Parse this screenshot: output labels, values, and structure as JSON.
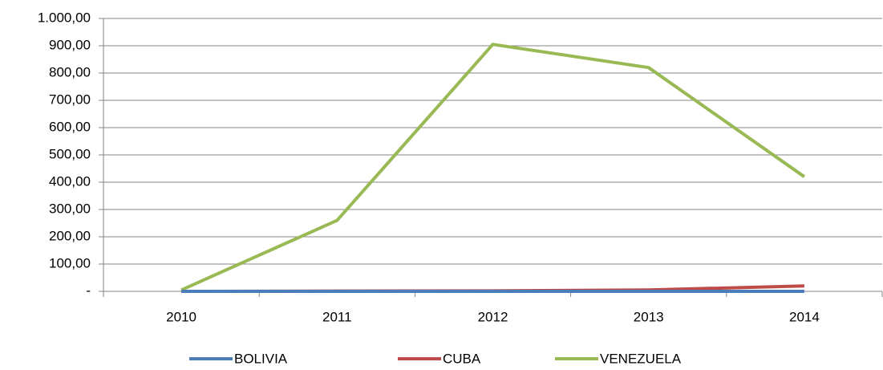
{
  "chart_data": {
    "type": "line",
    "categories": [
      "2010",
      "2011",
      "2012",
      "2013",
      "2014"
    ],
    "series": [
      {
        "name": "BOLIVIA",
        "color": "#4a7ebb",
        "values": [
          0,
          0,
          0,
          0,
          0
        ]
      },
      {
        "name": "CUBA",
        "color": "#be4b48",
        "values": [
          0,
          1,
          2,
          5,
          20
        ]
      },
      {
        "name": "VENEZUELA",
        "color": "#98b954",
        "values": [
          5,
          260,
          905,
          820,
          420
        ]
      }
    ],
    "ylim": [
      0,
      1000
    ],
    "yticks": [
      {
        "value": 0,
        "label": "-"
      },
      {
        "value": 100,
        "label": "100,00"
      },
      {
        "value": 200,
        "label": "200,00"
      },
      {
        "value": 300,
        "label": "300,00"
      },
      {
        "value": 400,
        "label": "400,00"
      },
      {
        "value": 500,
        "label": "500,00"
      },
      {
        "value": 600,
        "label": "600,00"
      },
      {
        "value": 700,
        "label": "700,00"
      },
      {
        "value": 800,
        "label": "800,00"
      },
      {
        "value": 900,
        "label": "900,00"
      },
      {
        "value": 1000,
        "label": "1.000,00"
      }
    ],
    "grid": true,
    "legend": "bottom"
  }
}
